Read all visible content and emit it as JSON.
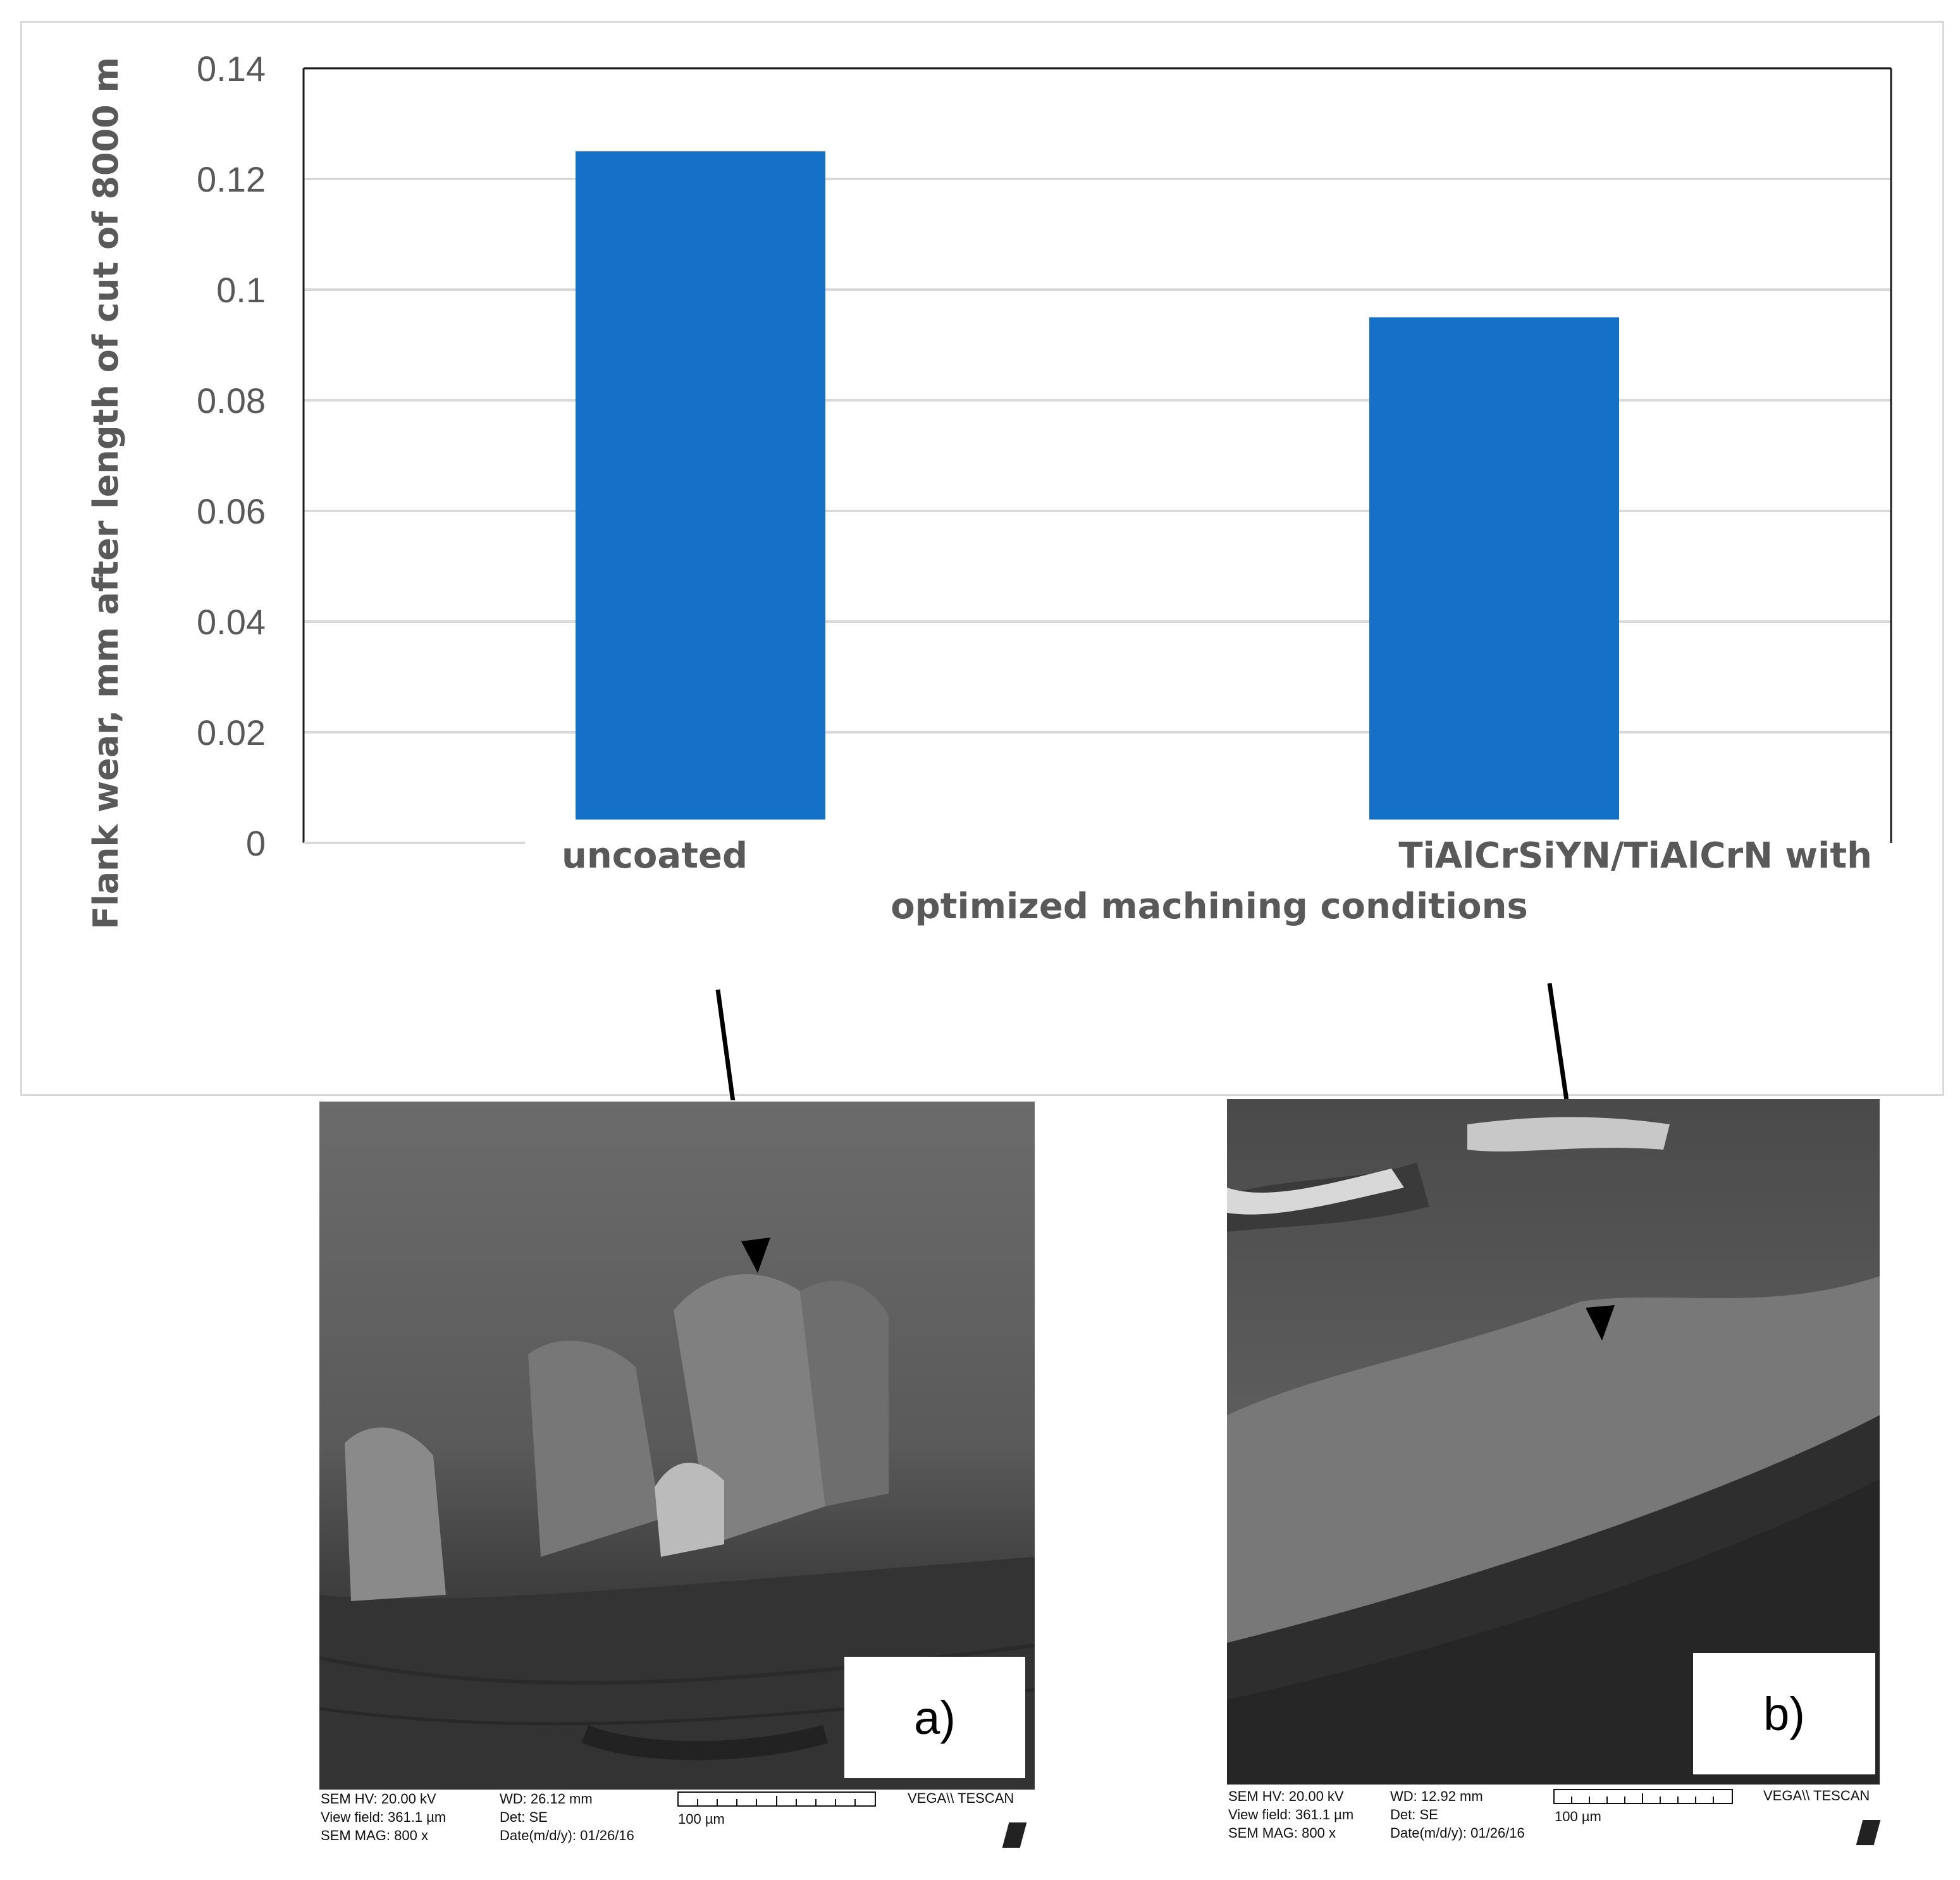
{
  "chart_data": {
    "type": "bar",
    "categories": [
      "uncoated",
      "TiAlCrSiYN/TiAlCrN with optimized machining conditions"
    ],
    "category_label_lines": [
      [
        "uncoated"
      ],
      [
        "TiAlCrSiYN/TiAlCrN with",
        "optimized machining conditions"
      ]
    ],
    "values": [
      0.125,
      0.095
    ],
    "ylabel": "Flank wear, mm after length of cut of 8000 m",
    "ylim": [
      0,
      0.14
    ],
    "yticks": [
      "0",
      "0.02",
      "0.04",
      "0.06",
      "0.08",
      "0.1",
      "0.12",
      "0.14"
    ],
    "grid": true,
    "bar_color": "#1570c8"
  },
  "panels": [
    {
      "label": "a)",
      "meta_left": [
        "SEM HV: 20.00 kV",
        "View field: 361.1 µm",
        "SEM MAG: 800 x"
      ],
      "meta_mid": [
        "WD: 26.12 mm",
        "Det: SE",
        "Date(m/d/y): 01/26/16"
      ],
      "scale": "100 µm",
      "brand": "VEGA\\\\ TESCAN"
    },
    {
      "label": "b)",
      "meta_left": [
        "SEM HV: 20.00 kV",
        "View field: 361.1 µm",
        "SEM MAG: 800 x"
      ],
      "meta_mid": [
        "WD: 12.92 mm",
        "Det: SE",
        "Date(m/d/y): 01/26/16"
      ],
      "scale": "100 µm",
      "brand": "VEGA\\\\ TESCAN"
    }
  ]
}
